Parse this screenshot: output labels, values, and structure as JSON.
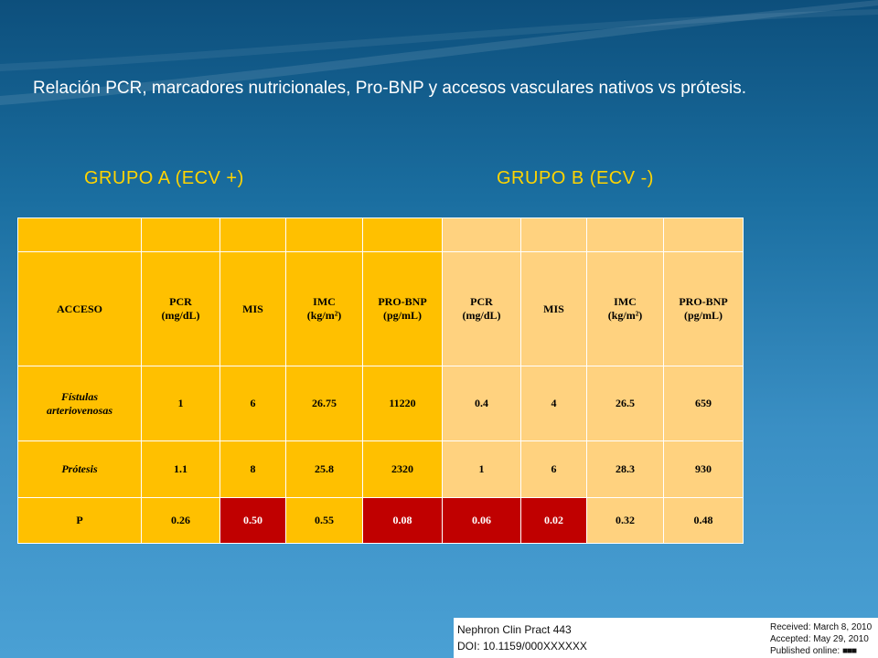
{
  "title": "Relación PCR, marcadores nutricionales, Pro-BNP y accesos vasculares nativos vs prótesis.",
  "groups": {
    "a": "GRUPO A  (ECV +)",
    "b": "GRUPO B  (ECV -)"
  },
  "table": {
    "headers": {
      "acceso": "ACCESO",
      "a": [
        {
          "l1": "PCR",
          "l2": "(mg/dL)"
        },
        {
          "l1": "MIS",
          "l2": ""
        },
        {
          "l1": "IMC",
          "l2": "(kg/m²)"
        },
        {
          "l1": "PRO-BNP",
          "l2": "(pg/mL)"
        }
      ],
      "b": [
        {
          "l1": "PCR",
          "l2": "(mg/dL)"
        },
        {
          "l1": "MIS",
          "l2": ""
        },
        {
          "l1": "IMC",
          "l2": "(kg/m²)"
        },
        {
          "l1": "PRO-BNP",
          "l2": "(pg/mL)"
        }
      ]
    },
    "rows": [
      {
        "label1": "Fístulas",
        "label2": "arteriovenosas",
        "values": [
          "1",
          "6",
          "26.75",
          "11220",
          "0.4",
          "4",
          "26.5",
          "659"
        ]
      },
      {
        "label1": "Prótesis",
        "label2": "",
        "values": [
          "1.1",
          "8",
          "25.8",
          "2320",
          "1",
          "6",
          "28.3",
          "930"
        ]
      },
      {
        "label1": "P",
        "label2": "",
        "values": [
          "0.26",
          "0.50",
          "0.55",
          "0.08",
          "0.06",
          "0.02",
          "0.32",
          "0.48"
        ]
      }
    ],
    "colors": {
      "group_a": "#ffc000",
      "group_b": "#ffd27f",
      "highlight": "#c00000"
    }
  },
  "citation": {
    "journal": "Nephron Clin Pract 443",
    "doi": "DOI: 10.1159/000XXXXXX",
    "received": "Received: March 8, 2010",
    "accepted": "Accepted: May 29, 2010",
    "published": "Published online:"
  }
}
